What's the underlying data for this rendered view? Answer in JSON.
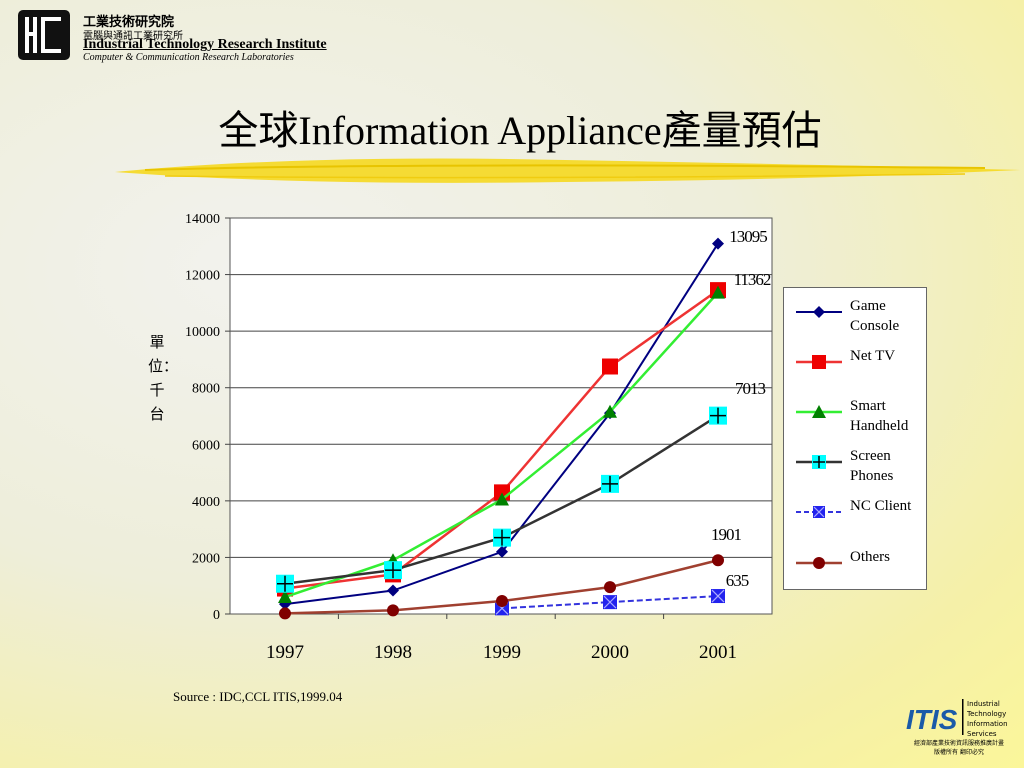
{
  "header": {
    "org_cn": "工業技術研究院",
    "org_sub_cn": "電腦與通訊工業研究所",
    "org_en": "Industrial Technology Research Institute",
    "org_lab": "Computer & Communication Research Laboratories"
  },
  "title": "全球Information Appliance產量預估",
  "ylabel": "單位：千台",
  "source": "Source : IDC,CCL ITIS,1999.04",
  "footer": {
    "itis_mark": "ITIS",
    "itis_lines": [
      "Industrial",
      "Technology",
      "Information",
      "Services"
    ],
    "itis_cn_1": "經濟部產業技術資訊服務推廣計畫",
    "itis_cn_2": "版權所有  翻印必究"
  },
  "colors": {
    "game": "#000080",
    "nettv": "#ee3333",
    "smart": "#33ee33",
    "screen": "#333333",
    "nc": "#3333dd",
    "others": "#a04030",
    "marker_red": "#ee0000",
    "marker_green": "#008000",
    "marker_cyan": "#00ffff",
    "marker_blue": "#2222ee",
    "marker_brown": "#800000"
  },
  "chart_data": {
    "type": "line",
    "x": [
      "1997",
      "1998",
      "1999",
      "2000",
      "2001"
    ],
    "ylim": [
      0,
      14000
    ],
    "yticks": [
      "0",
      "2000",
      "4000",
      "6000",
      "8000",
      "10000",
      "12000",
      "14000"
    ],
    "grid": true,
    "legend_position": "right",
    "series": [
      {
        "key": "game",
        "name": "Game Console",
        "marker": "diamond",
        "values": [
          350,
          830,
          2200,
          7100,
          13095
        ]
      },
      {
        "key": "nettv",
        "name": "Net TV",
        "marker": "square",
        "values": [
          900,
          1400,
          4300,
          8750,
          11450
        ]
      },
      {
        "key": "smart",
        "name": "Smart Handheld",
        "marker": "triangle",
        "values": [
          600,
          1900,
          4050,
          7150,
          11362
        ]
      },
      {
        "key": "screen",
        "name": "Screen Phones",
        "marker": "plus-square",
        "values": [
          1070,
          1550,
          2700,
          4600,
          7013
        ]
      },
      {
        "key": "nc",
        "name": "NC Client",
        "marker": "x-square",
        "values": [
          null,
          null,
          200,
          420,
          635
        ]
      },
      {
        "key": "others",
        "name": "Others",
        "marker": "circle",
        "values": [
          20,
          130,
          460,
          950,
          1901
        ]
      }
    ],
    "data_labels": [
      "13095",
      "11362",
      "7013",
      "1901",
      "635"
    ]
  }
}
